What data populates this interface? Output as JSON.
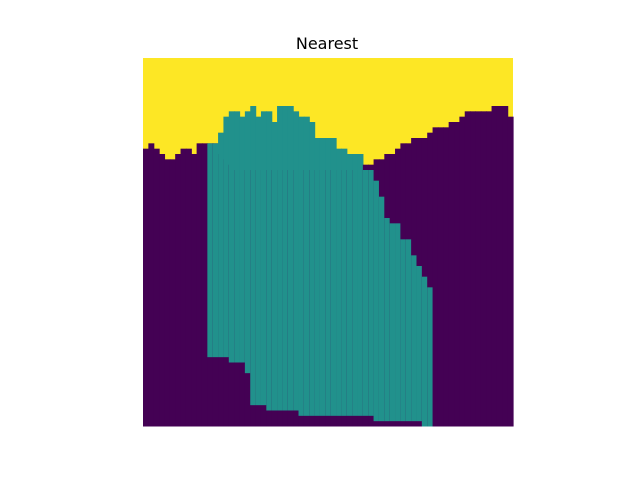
{
  "chart_data": {
    "type": "heatmap",
    "title": "Nearest",
    "xlabel": "",
    "ylabel": "",
    "axes_visible": false,
    "interpolation": "nearest",
    "colormap": "viridis",
    "classes": [
      {
        "value": 0,
        "color": "#440154"
      },
      {
        "value": 1,
        "color": "#21918c"
      },
      {
        "value": 2,
        "color": "#fde725"
      }
    ],
    "grid_size": [
      69,
      69
    ],
    "boundaries": {
      "purple_top": [
        17,
        16,
        17,
        18,
        19,
        19,
        18,
        17,
        17,
        18,
        16,
        16,
        16,
        16,
        18,
        19,
        20,
        21,
        21,
        21,
        21,
        21,
        21,
        21,
        21,
        21,
        21,
        21,
        21,
        21,
        21,
        21,
        21,
        21,
        21,
        21,
        21,
        21,
        21,
        21,
        21,
        20,
        20,
        19,
        19,
        18,
        18,
        17,
        16,
        16,
        15,
        15,
        15,
        14,
        13,
        13,
        13,
        12,
        12,
        11,
        10,
        10,
        10,
        10,
        10,
        9,
        9,
        9,
        11
      ],
      "teal_top": [
        null,
        null,
        null,
        null,
        null,
        null,
        null,
        null,
        null,
        null,
        null,
        null,
        16,
        16,
        14,
        11,
        10,
        10,
        11,
        10,
        9,
        11,
        10,
        10,
        12,
        9,
        9,
        9,
        10,
        11,
        11,
        12,
        15,
        15,
        15,
        15,
        17,
        17,
        18,
        18,
        18,
        21,
        21,
        23,
        26,
        30,
        31,
        31,
        34,
        34,
        37,
        39,
        41,
        43,
        null,
        null,
        null,
        null,
        null,
        null,
        null,
        null,
        null,
        null,
        null,
        null,
        null,
        null,
        null
      ],
      "teal_bottom": [
        null,
        null,
        null,
        null,
        null,
        null,
        null,
        null,
        null,
        null,
        null,
        null,
        13,
        13,
        13,
        13,
        12,
        12,
        12,
        10,
        4,
        4,
        4,
        3,
        3,
        3,
        3,
        3,
        3,
        2,
        2,
        2,
        2,
        2,
        2,
        2,
        2,
        2,
        2,
        2,
        2,
        2,
        2,
        1,
        1,
        1,
        1,
        1,
        1,
        1,
        1,
        1,
        0,
        0,
        null,
        null,
        null,
        null,
        null,
        null,
        null,
        null,
        null,
        null,
        null,
        null,
        null,
        null,
        null
      ]
    }
  }
}
